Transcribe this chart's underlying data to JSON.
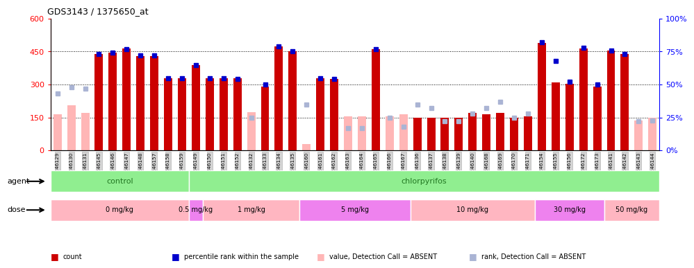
{
  "title": "GDS3143 / 1375650_at",
  "samples": [
    "GSM246129",
    "GSM246130",
    "GSM246131",
    "GSM246145",
    "GSM246146",
    "GSM246147",
    "GSM246148",
    "GSM246157",
    "GSM246158",
    "GSM246159",
    "GSM246149",
    "GSM246150",
    "GSM246151",
    "GSM246152",
    "GSM246132",
    "GSM246133",
    "GSM246134",
    "GSM246135",
    "GSM246160",
    "GSM246161",
    "GSM246162",
    "GSM246163",
    "GSM246164",
    "GSM246165",
    "GSM246166",
    "GSM246167",
    "GSM246136",
    "GSM246137",
    "GSM246138",
    "GSM246139",
    "GSM246140",
    "GSM246168",
    "GSM246169",
    "GSM246170",
    "GSM246171",
    "GSM246154",
    "GSM246155",
    "GSM246156",
    "GSM246172",
    "GSM246173",
    "GSM246141",
    "GSM246142",
    "GSM246143",
    "GSM246144"
  ],
  "count_present": [
    null,
    null,
    null,
    440,
    445,
    465,
    430,
    430,
    330,
    330,
    390,
    330,
    330,
    330,
    null,
    290,
    475,
    450,
    null,
    330,
    325,
    null,
    null,
    460,
    null,
    null,
    150,
    150,
    150,
    150,
    170,
    165,
    170,
    150,
    155,
    490,
    310,
    305,
    465,
    290,
    455,
    440,
    null,
    null
  ],
  "count_absent": [
    165,
    205,
    170,
    null,
    null,
    null,
    null,
    null,
    null,
    null,
    null,
    null,
    null,
    null,
    175,
    null,
    null,
    null,
    30,
    null,
    null,
    155,
    155,
    null,
    155,
    165,
    null,
    null,
    null,
    null,
    null,
    null,
    null,
    null,
    null,
    null,
    null,
    null,
    null,
    null,
    null,
    null,
    135,
    150
  ],
  "rank_present": [
    null,
    null,
    null,
    73,
    74,
    77,
    72,
    72,
    55,
    55,
    65,
    55,
    55,
    54,
    null,
    50,
    79,
    75,
    null,
    55,
    54,
    null,
    null,
    77,
    null,
    null,
    null,
    null,
    null,
    null,
    null,
    null,
    null,
    null,
    null,
    82,
    68,
    52,
    78,
    50,
    76,
    73,
    null,
    null
  ],
  "rank_absent": [
    43,
    48,
    47,
    null,
    null,
    null,
    null,
    null,
    null,
    null,
    null,
    null,
    null,
    null,
    25,
    null,
    null,
    null,
    35,
    null,
    null,
    17,
    17,
    null,
    25,
    18,
    35,
    32,
    22,
    22,
    28,
    32,
    37,
    25,
    28,
    null,
    null,
    null,
    null,
    null,
    null,
    null,
    22,
    23
  ],
  "ylim_left": [
    0,
    600
  ],
  "ylim_right": [
    0,
    100
  ],
  "yticks_left": [
    0,
    150,
    300,
    450,
    600
  ],
  "yticks_right": [
    0,
    25,
    50,
    75,
    100
  ],
  "color_count_present": "#cc0000",
  "color_count_absent": "#ffb6b6",
  "color_rank_present": "#0000cc",
  "color_rank_absent": "#aab4d4",
  "agent_groups": [
    {
      "label": "control",
      "start": 0,
      "end": 9,
      "color": "#90ee90"
    },
    {
      "label": "chlorpyrifos",
      "start": 10,
      "end": 43,
      "color": "#90ee90"
    }
  ],
  "dose_groups": [
    {
      "label": "0 mg/kg",
      "start": 0,
      "end": 9,
      "color": "#ffb6c1"
    },
    {
      "label": "0.5 mg/kg",
      "start": 10,
      "end": 10,
      "color": "#ee82ee"
    },
    {
      "label": "1 mg/kg",
      "start": 11,
      "end": 17,
      "color": "#ffb6c1"
    },
    {
      "label": "5 mg/kg",
      "start": 18,
      "end": 25,
      "color": "#ee82ee"
    },
    {
      "label": "10 mg/kg",
      "start": 26,
      "end": 34,
      "color": "#ffb6c1"
    },
    {
      "label": "30 mg/kg",
      "start": 35,
      "end": 39,
      "color": "#ee82ee"
    },
    {
      "label": "50 mg/kg",
      "start": 40,
      "end": 43,
      "color": "#ffb6c1"
    }
  ],
  "legend_items": [
    {
      "label": "count",
      "color": "#cc0000"
    },
    {
      "label": "percentile rank within the sample",
      "color": "#0000cc"
    },
    {
      "label": "value, Detection Call = ABSENT",
      "color": "#ffb6b6"
    },
    {
      "label": "rank, Detection Call = ABSENT",
      "color": "#aab4d4"
    }
  ]
}
